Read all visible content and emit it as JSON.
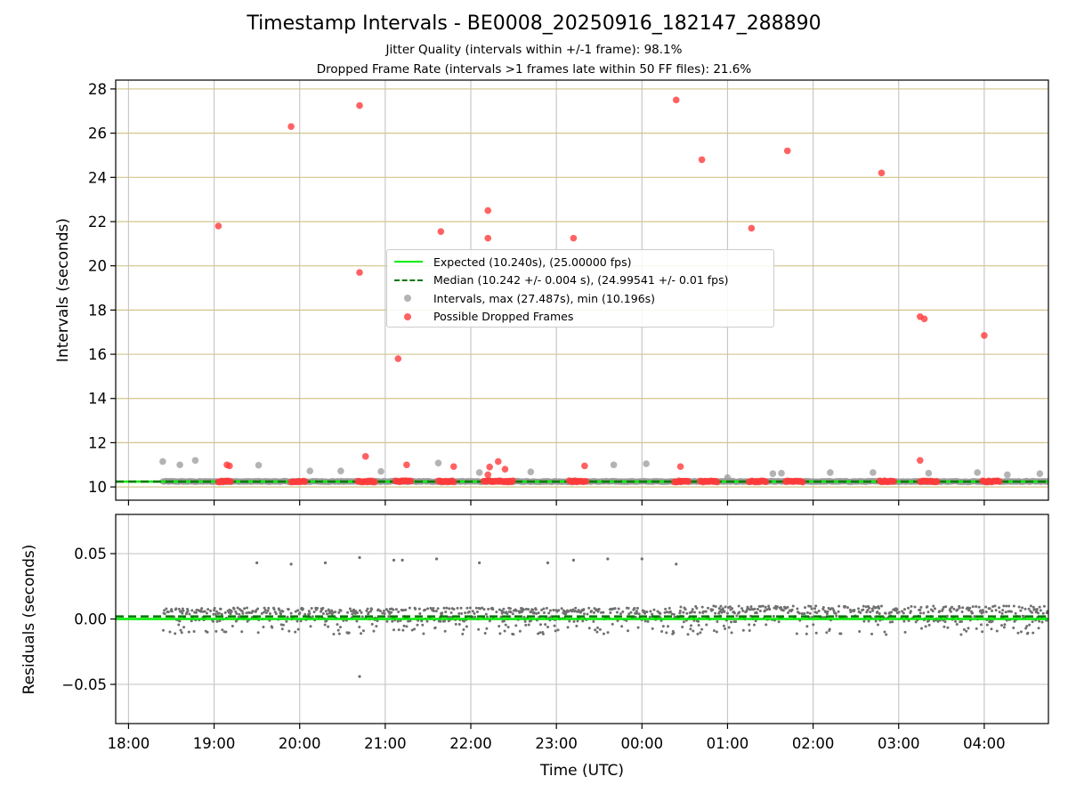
{
  "chart_data": [
    {
      "type": "scatter",
      "title": "Timestamp Intervals - BE0008_20250916_182147_288890",
      "subtitle_lines": [
        "Jitter Quality (intervals within +/-1 frame): 98.1%",
        "Dropped Frame Rate (intervals >1 frames late within 50 FF files): 21.6%"
      ],
      "xlabel": "",
      "ylabel": "Intervals (seconds)",
      "x_units": "hours since 18:00 UTC (2025-09-16)",
      "xlim": [
        -0.15,
        10.75
      ],
      "ylim": [
        9.4,
        28.4
      ],
      "yticks": [
        10,
        12,
        14,
        16,
        18,
        20,
        22,
        24,
        26,
        28
      ],
      "grid": true,
      "legend_position": "center",
      "legend": [
        "Expected (10.240s), (25.00000 fps)",
        "Median (10.242 +/- 0.004 s), (24.99541 +/- 0.01 fps)",
        "Intervals, max (27.487s), min (10.196s)",
        "Possible Dropped Frames"
      ],
      "expected_interval": 10.24,
      "median_interval": 10.242,
      "series": [
        {
          "name": "Intervals, max (27.487s), min (10.196s)",
          "color": "#9a9a9a",
          "points": [
            [
              0.4,
              11.15
            ],
            [
              0.6,
              11.0
            ],
            [
              0.78,
              11.2
            ],
            [
              1.52,
              10.98
            ],
            [
              2.12,
              10.72
            ],
            [
              2.48,
              10.72
            ],
            [
              2.95,
              10.7
            ],
            [
              3.62,
              11.08
            ],
            [
              4.1,
              10.65
            ],
            [
              4.7,
              10.68
            ],
            [
              5.67,
              11.0
            ],
            [
              6.05,
              11.05
            ],
            [
              7.0,
              10.42
            ],
            [
              7.53,
              10.6
            ],
            [
              7.63,
              10.62
            ],
            [
              8.2,
              10.65
            ],
            [
              8.7,
              10.65
            ],
            [
              9.35,
              10.62
            ],
            [
              9.92,
              10.65
            ],
            [
              10.27,
              10.55
            ],
            [
              10.65,
              10.6
            ]
          ]
        },
        {
          "name": "Possible Dropped Frames",
          "color": "#ff3b3b",
          "points": [
            [
              1.05,
              21.8
            ],
            [
              1.9,
              26.3
            ],
            [
              2.7,
              27.25
            ],
            [
              2.7,
              19.7
            ],
            [
              3.15,
              15.8
            ],
            [
              3.65,
              21.55
            ],
            [
              4.2,
              22.5
            ],
            [
              4.2,
              21.25
            ],
            [
              3.25,
              11.0
            ],
            [
              1.15,
              11.0
            ],
            [
              1.18,
              10.95
            ],
            [
              2.77,
              11.38
            ],
            [
              3.8,
              10.92
            ],
            [
              4.22,
              10.9
            ],
            [
              4.2,
              10.55
            ],
            [
              4.32,
              11.15
            ],
            [
              4.4,
              10.8
            ],
            [
              5.2,
              21.25
            ],
            [
              5.33,
              10.95
            ],
            [
              6.4,
              27.5
            ],
            [
              6.45,
              10.92
            ],
            [
              6.7,
              24.8
            ],
            [
              7.28,
              21.7
            ],
            [
              7.7,
              25.2
            ],
            [
              8.8,
              24.2
            ],
            [
              9.25,
              17.7
            ],
            [
              9.3,
              17.6
            ],
            [
              9.25,
              11.2
            ],
            [
              10.0,
              16.85
            ]
          ],
          "clusters_at_10_25": [
            [
              1.05,
              1.2
            ],
            [
              1.9,
              2.07
            ],
            [
              2.68,
              2.88
            ],
            [
              3.12,
              3.3
            ],
            [
              3.62,
              3.8
            ],
            [
              4.15,
              4.5
            ],
            [
              5.15,
              5.35
            ],
            [
              6.38,
              6.55
            ],
            [
              6.68,
              6.88
            ],
            [
              7.25,
              7.45
            ],
            [
              7.68,
              7.88
            ],
            [
              8.78,
              8.95
            ],
            [
              9.25,
              9.45
            ],
            [
              9.98,
              10.18
            ]
          ]
        }
      ]
    },
    {
      "type": "scatter",
      "title": "",
      "xlabel": "Time (UTC)",
      "ylabel": "Residuals (seconds)",
      "xlim": [
        -0.15,
        10.75
      ],
      "ylim": [
        -0.08,
        0.08
      ],
      "yticks": [
        -0.05,
        0.0,
        0.05
      ],
      "ytick_labels": [
        "−0.05",
        "0.00",
        "0.05"
      ],
      "xticks": [
        0,
        1,
        2,
        3,
        4,
        5,
        6,
        7,
        8,
        9,
        10
      ],
      "xtick_labels": [
        "18:00",
        "19:00",
        "20:00",
        "21:00",
        "22:00",
        "23:00",
        "00:00",
        "01:00",
        "02:00",
        "03:00",
        "04:00"
      ],
      "grid": true,
      "expected_residual": 0.0,
      "median_residual": 0.002,
      "series": [
        {
          "name": "",
          "color": "#707070",
          "outliers": [
            [
              1.5,
              0.043
            ],
            [
              1.9,
              0.042
            ],
            [
              2.3,
              0.043
            ],
            [
              2.7,
              0.047
            ],
            [
              3.1,
              0.045
            ],
            [
              3.2,
              0.045
            ],
            [
              3.6,
              0.046
            ],
            [
              4.1,
              0.043
            ],
            [
              4.9,
              0.043
            ],
            [
              5.2,
              0.045
            ],
            [
              5.6,
              0.046
            ],
            [
              6.0,
              0.046
            ],
            [
              6.4,
              0.042
            ],
            [
              2.7,
              -0.044
            ]
          ],
          "noise_bands": [
            [
              0.4,
              6.4,
              0.006,
              0.005
            ],
            [
              6.4,
              10.75,
              0.007,
              0.006
            ]
          ]
        }
      ]
    }
  ]
}
